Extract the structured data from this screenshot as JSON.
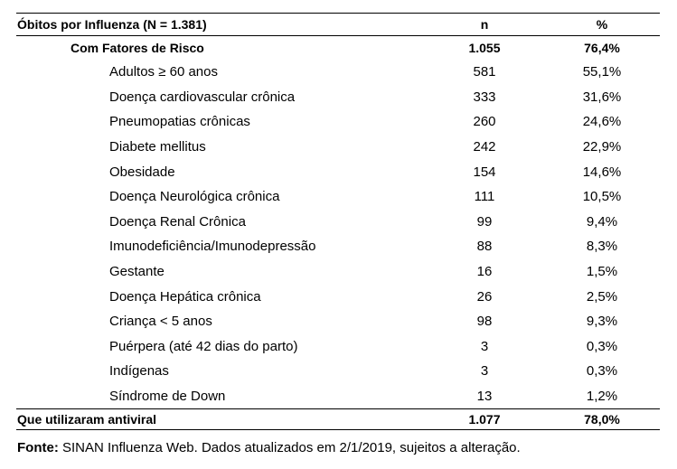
{
  "table": {
    "headers": {
      "label": "Óbitos por Influenza (N = 1.381)",
      "n": "n",
      "pct": "%"
    },
    "group": {
      "label": "Com Fatores de Risco",
      "n": "1.055",
      "pct": "76,4%"
    },
    "rows": [
      {
        "label": "Adultos  ≥ 60 anos",
        "n": "581",
        "pct": "55,1%"
      },
      {
        "label": "Doença cardiovascular crônica",
        "n": "333",
        "pct": "31,6%"
      },
      {
        "label": "Pneumopatias crônicas",
        "n": "260",
        "pct": "24,6%"
      },
      {
        "label": "Diabete mellitus",
        "n": "242",
        "pct": "22,9%"
      },
      {
        "label": "Obesidade",
        "n": "154",
        "pct": "14,6%"
      },
      {
        "label": "Doença Neurológica crônica",
        "n": "111",
        "pct": "10,5%"
      },
      {
        "label": "Doença Renal Crônica",
        "n": "99",
        "pct": "9,4%"
      },
      {
        "label": "Imunodeficiência/Imunodepressão",
        "n": "88",
        "pct": "8,3%"
      },
      {
        "label": "Gestante",
        "n": "16",
        "pct": "1,5%"
      },
      {
        "label": "Doença Hepática crônica",
        "n": "26",
        "pct": "2,5%"
      },
      {
        "label": "Criança < 5 anos",
        "n": "98",
        "pct": "9,3%"
      },
      {
        "label": "Puérpera (até 42 dias do parto)",
        "n": "3",
        "pct": "0,3%"
      },
      {
        "label": "Indígenas",
        "n": "3",
        "pct": "0,3%"
      },
      {
        "label": "Síndrome de Down",
        "n": "13",
        "pct": "1,2%"
      }
    ],
    "total": {
      "label": "Que utilizaram antiviral",
      "n": "1.077",
      "pct": "78,0%"
    }
  },
  "footnote": {
    "label": "Fonte:",
    "text": " SINAN Influenza Web. Dados atualizados em 2/1/2019, sujeitos a alteração."
  }
}
